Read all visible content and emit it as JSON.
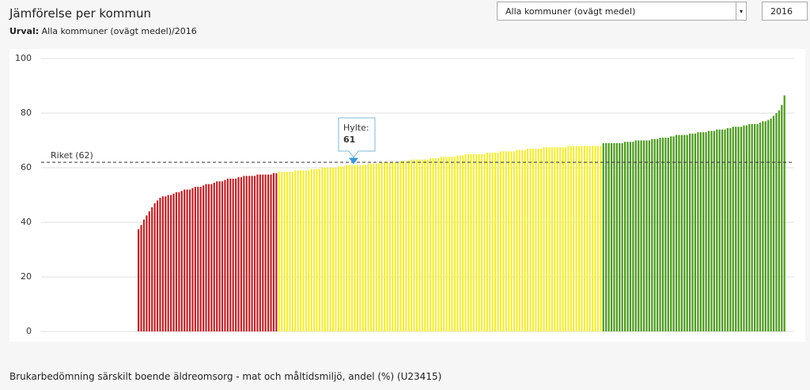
{
  "header": {
    "title": "Jämförelse per kommun",
    "selection_label": "Urval:",
    "selection_value": "Alla kommuner (ovägt medel)/2016"
  },
  "controls": {
    "region": "Alla kommuner (ovägt medel)",
    "year": "2016"
  },
  "chart_data": {
    "type": "bar",
    "ylim": [
      0,
      100
    ],
    "yticks": [
      0,
      20,
      40,
      60,
      80,
      100
    ],
    "grid": true,
    "reference_line": {
      "label": "Riket (62)",
      "value": 62
    },
    "tooltip": {
      "name": "Hylte:",
      "value": 61
    },
    "series": [
      {
        "color": "#b8262b",
        "values": [
          37.5,
          39,
          41,
          42.5,
          44,
          45.5,
          47,
          48,
          49,
          49.5,
          49.5,
          50,
          50,
          50.5,
          51,
          51,
          51.5,
          52,
          52,
          52,
          52.5,
          53,
          53,
          53,
          53.5,
          54,
          54,
          54,
          54.5,
          55,
          55,
          55,
          55.5,
          56,
          56,
          56,
          56,
          56.5,
          56.5,
          57,
          57,
          57,
          57,
          57,
          57.5,
          57.5,
          57.5,
          57.5,
          57.5,
          57.5,
          58,
          58
        ]
      },
      {
        "color": "#f2ee3a",
        "values": [
          58.5,
          58.5,
          58.5,
          58.5,
          58.5,
          58.5,
          59,
          59,
          59,
          59,
          59,
          59,
          59.5,
          59.5,
          59.5,
          59.5,
          60,
          60,
          60,
          60,
          60,
          60,
          60.5,
          60.5,
          60.5,
          61,
          61,
          61,
          61,
          61,
          61,
          61,
          61,
          61.5,
          61.5,
          61.5,
          61.5,
          61.5,
          62,
          62,
          62,
          62,
          62,
          62,
          62,
          62.5,
          62.5,
          62.5,
          62.5,
          63,
          63,
          63,
          63,
          63,
          63,
          63,
          63.5,
          63.5,
          63.5,
          63.5,
          64,
          64,
          64,
          64,
          64,
          64,
          64.5,
          64.5,
          64.5,
          65,
          65,
          65,
          65,
          65,
          65,
          65,
          65,
          65.5,
          65.5,
          65.5,
          65.5,
          65.5,
          66,
          66,
          66,
          66,
          66,
          66,
          66.5,
          66.5,
          66.5,
          66.5,
          67,
          67,
          67,
          67,
          67,
          67,
          67.5,
          67.5,
          67.5,
          67.5,
          67.5,
          67.5,
          67.5,
          67.5,
          67.5,
          68,
          68,
          68,
          68,
          68,
          68,
          68,
          68,
          68,
          68,
          68,
          68,
          68
        ]
      },
      {
        "color": "#4e9a1f",
        "values": [
          69,
          69,
          69,
          69,
          69,
          69,
          69,
          69,
          69.5,
          69.5,
          69.5,
          69.5,
          70,
          70,
          70,
          70,
          70,
          70,
          70.5,
          70.5,
          70.5,
          71,
          71,
          71,
          71,
          71.5,
          71.5,
          72,
          72,
          72,
          72,
          72,
          72.5,
          72.5,
          72.5,
          73,
          73,
          73,
          73,
          73.5,
          73.5,
          73.5,
          74,
          74,
          74,
          74,
          74.5,
          74.5,
          75,
          75,
          75,
          75,
          75.5,
          75.5,
          76,
          76,
          76,
          76,
          76.5,
          77,
          77,
          77.5,
          78,
          79,
          80,
          81,
          83,
          86.5
        ]
      }
    ]
  },
  "footer": {
    "indicator": "Brukarbedömning särskilt boende äldreomsorg - mat och måltidsmiljö, andel (%) (U23415)"
  }
}
